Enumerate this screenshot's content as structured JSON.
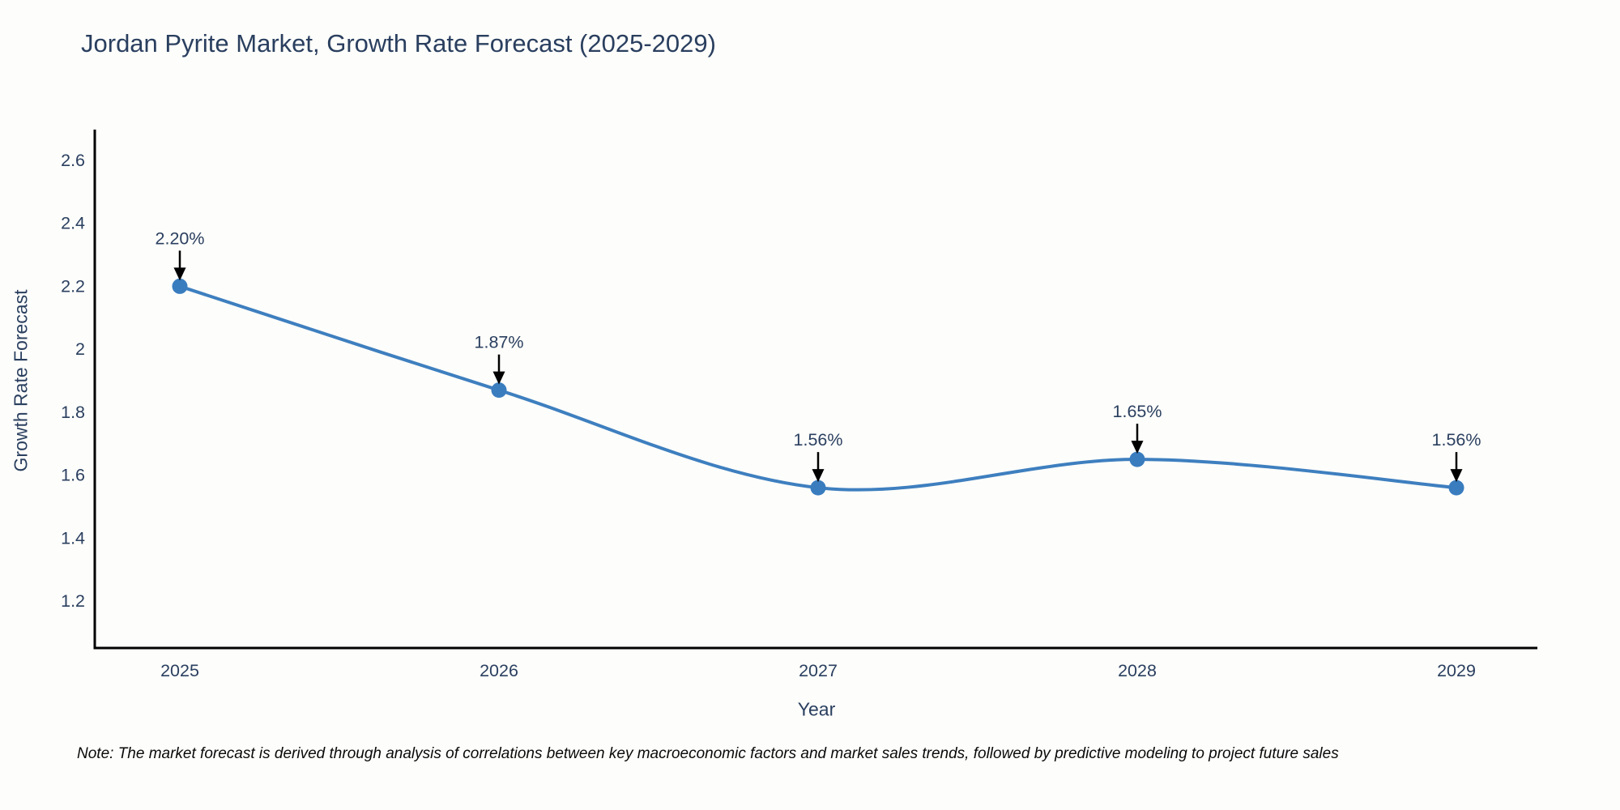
{
  "chart_data": {
    "type": "line",
    "title": "Jordan Pyrite Market, Growth Rate Forecast (2025-2029)",
    "xlabel": "Year",
    "ylabel": "Growth Rate Forecast",
    "x": [
      2025,
      2026,
      2027,
      2028,
      2029
    ],
    "series": [
      {
        "name": "Growth Rate Forecast",
        "values": [
          2.2,
          1.87,
          1.56,
          1.65,
          1.56
        ],
        "point_labels": [
          "2.20%",
          "1.87%",
          "1.56%",
          "1.65%",
          "1.56%"
        ]
      }
    ],
    "x_tick_labels": [
      "2025",
      "2026",
      "2027",
      "2028",
      "2029"
    ],
    "y_tick_values": [
      2.6,
      2.4,
      2.2,
      2.0,
      1.8,
      1.6,
      1.4,
      1.2
    ],
    "y_tick_labels": [
      "2.6",
      "2.4",
      "2.2",
      "2",
      "1.8",
      "1.6",
      "1.4",
      "1.2"
    ],
    "ylim": [
      1.05,
      2.7
    ],
    "grid": false,
    "legend_position": "none",
    "line_style": "spline",
    "colors": {
      "line": "#3e7fbf",
      "marker": "#3a7dbf",
      "axis": "#000000",
      "text": "#2a3f5f",
      "arrow": "#000000",
      "background": "#fdfdfb"
    },
    "note": "Note: The market forecast is derived through analysis of correlations between key macroeconomic factors and market sales trends, followed by predictive modeling to project future sales"
  }
}
